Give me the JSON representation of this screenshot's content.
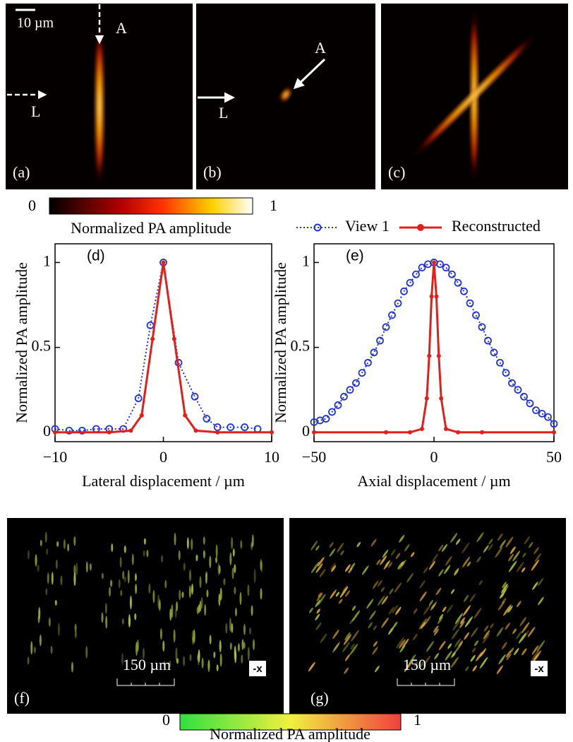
{
  "panels": {
    "a": {
      "label": "(a)",
      "scale": "10 µm",
      "arrow_a": "A",
      "arrow_l": "L"
    },
    "b": {
      "label": "(b)",
      "arrow_a": "A",
      "arrow_l": "L"
    },
    "c": {
      "label": "(c)"
    },
    "f": {
      "label": "(f)",
      "scale": "150 µm",
      "direction": "-x"
    },
    "g": {
      "label": "(g)",
      "scale": "150 µm",
      "direction": "-x"
    }
  },
  "colorbar_top": {
    "min": 0,
    "max": 1,
    "label": "Normalized PA amplitude"
  },
  "colorbar_bottom": {
    "min": 0,
    "max": 1,
    "label": "Normalized PA amplitude"
  },
  "chart_data": [
    {
      "type": "line",
      "label": "(d)",
      "xlabel": "Lateral displacement / µm",
      "ylabel": "Normalized PA amplitude",
      "xlim": [
        -10,
        10
      ],
      "ylim": [
        -0.055,
        1.11
      ],
      "xticks": [
        {
          "value": -10,
          "label": "−10"
        },
        0,
        10
      ],
      "yticks": [
        0,
        0.5,
        1
      ],
      "series": [
        {
          "name": "View 1",
          "color": "#2233cc",
          "line_style": "dotted",
          "marker": "open",
          "x": [
            -10,
            -8.7,
            -7.5,
            -6.2,
            -5,
            -3.7,
            -2.3,
            -1.2,
            0,
            1.4,
            2.9,
            4,
            5,
            6.2,
            7.5,
            8.7
          ],
          "values": [
            0.02,
            0.01,
            0.01,
            0.02,
            0.02,
            0.02,
            0.2,
            0.63,
            1.0,
            0.41,
            0.21,
            0.08,
            0.03,
            0.03,
            0.03,
            0.02
          ]
        },
        {
          "name": "Reconstructed",
          "color": "#e0201c",
          "line_style": "solid",
          "marker": "filled",
          "x": [
            -10,
            -5,
            -3,
            -2,
            -1,
            0,
            1,
            2,
            3,
            5,
            10
          ],
          "values": [
            0,
            0,
            0.01,
            0.1,
            0.55,
            1,
            0.55,
            0.1,
            0.01,
            0,
            0
          ]
        }
      ]
    },
    {
      "type": "line",
      "label": "(e)",
      "xlabel": "Axial displacement / µm",
      "ylabel": "Normalized PA amplitude",
      "xlim": [
        -50,
        50
      ],
      "ylim": [
        -0.055,
        1.11
      ],
      "xticks": [
        {
          "value": -50,
          "label": "−50"
        },
        0,
        50
      ],
      "yticks": [
        0,
        0.5,
        1
      ],
      "series": [
        {
          "name": "View 1",
          "color": "#2233cc",
          "line_style": "dotted",
          "marker": "open",
          "x": [
            -50,
            -47.5,
            -45,
            -42.5,
            -40,
            -37.5,
            -35,
            -32.5,
            -30,
            -27.5,
            -25,
            -22.5,
            -20,
            -17.5,
            -15,
            -12.5,
            -10,
            -7.5,
            -5,
            -2.5,
            0,
            2.5,
            5,
            7.5,
            10,
            12.5,
            15,
            17.5,
            20,
            22.5,
            25,
            27.5,
            30,
            32.5,
            35,
            37.5,
            40,
            42.5,
            45,
            47.5,
            50
          ],
          "values": [
            0.06,
            0.07,
            0.08,
            0.12,
            0.16,
            0.21,
            0.25,
            0.29,
            0.35,
            0.41,
            0.47,
            0.54,
            0.62,
            0.69,
            0.76,
            0.83,
            0.88,
            0.93,
            0.97,
            0.99,
            1.0,
            0.99,
            0.97,
            0.93,
            0.88,
            0.83,
            0.76,
            0.69,
            0.62,
            0.54,
            0.47,
            0.41,
            0.35,
            0.29,
            0.25,
            0.21,
            0.17,
            0.13,
            0.11,
            0.09,
            0.05
          ]
        },
        {
          "name": "Reconstructed",
          "color": "#e0201c",
          "line_style": "solid",
          "marker": "filled",
          "x": [
            -50,
            -20,
            -10,
            -5,
            -3,
            -2,
            -1,
            0,
            1,
            2,
            3,
            5,
            10,
            20,
            50
          ],
          "values": [
            0,
            0,
            0,
            0.02,
            0.2,
            0.45,
            0.8,
            1,
            0.8,
            0.45,
            0.2,
            0.02,
            0,
            0,
            0
          ]
        }
      ]
    }
  ]
}
